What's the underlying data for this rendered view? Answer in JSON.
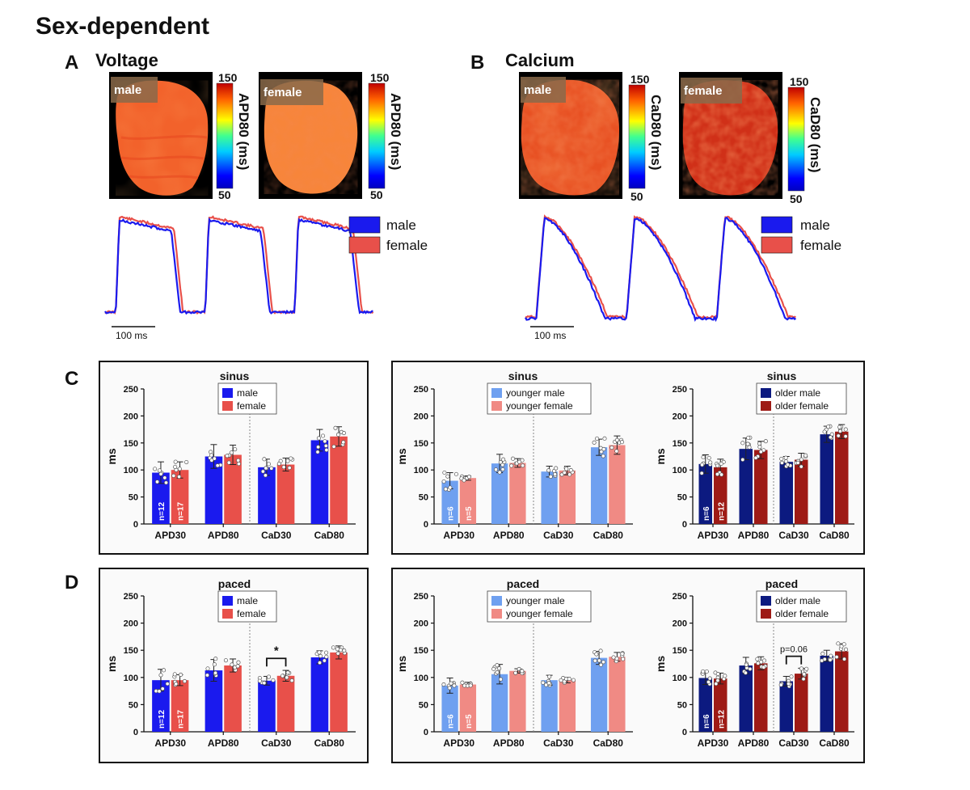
{
  "figure_title": "Sex-dependent",
  "panel_a": {
    "label": "A",
    "title": "Voltage"
  },
  "panel_b": {
    "label": "B",
    "title": "Calcium"
  },
  "panel_c": {
    "label": "C"
  },
  "panel_d": {
    "label": "D"
  },
  "maps": {
    "voltage_male": {
      "label": "male",
      "colorbar_max": "150",
      "colorbar_min": "50",
      "colorbar_title": "APD80 (ms)"
    },
    "voltage_female": {
      "label": "female",
      "colorbar_max": "150",
      "colorbar_min": "50",
      "colorbar_title": "APD80 (ms)"
    },
    "calcium_male": {
      "label": "male",
      "colorbar_max": "150",
      "colorbar_min": "50",
      "colorbar_title": "CaD80 (ms)"
    },
    "calcium_female": {
      "label": "female",
      "colorbar_max": "150",
      "colorbar_min": "50",
      "colorbar_title": "CaD80 (ms)"
    }
  },
  "traces": {
    "legend_male": "male",
    "legend_female": "female",
    "scale_bar": "100 ms"
  },
  "colors": {
    "male": "#1a1aee",
    "female": "#e8504a",
    "younger_male": "#6fa0f0",
    "younger_female": "#f08a84",
    "older_male": "#0c1a80",
    "older_female": "#9e1b16"
  },
  "chart_data": [
    {
      "id": "c1",
      "type": "bar",
      "title": "sinus",
      "ylabel": "ms",
      "ylim": [
        0,
        250
      ],
      "yticks": [
        "0",
        "50",
        "100",
        "150",
        "200",
        "250"
      ],
      "categories": [
        "APD30",
        "APD80",
        "CaD30",
        "CaD80"
      ],
      "series": [
        {
          "name": "male",
          "values": [
            95,
            125,
            105,
            155
          ]
        },
        {
          "name": "female",
          "values": [
            100,
            128,
            110,
            162
          ]
        }
      ],
      "errors": [
        [
          20,
          22,
          15,
          20
        ],
        [
          15,
          18,
          12,
          18
        ]
      ],
      "n_labels": [
        "n=12",
        "n=17"
      ],
      "annotation": ""
    },
    {
      "id": "c2",
      "type": "bar",
      "title": "sinus",
      "ylabel": "ms",
      "ylim": [
        0,
        250
      ],
      "yticks": [
        "0",
        "50",
        "100",
        "150",
        "200",
        "250"
      ],
      "categories": [
        "APD30",
        "APD80",
        "CaD30",
        "CaD80"
      ],
      "series": [
        {
          "name": "younger male",
          "values": [
            80,
            112,
            97,
            142
          ]
        },
        {
          "name": "younger female",
          "values": [
            85,
            113,
            99,
            146
          ]
        }
      ],
      "errors": [
        [
          15,
          17,
          10,
          15
        ],
        [
          4,
          8,
          8,
          17
        ]
      ],
      "n_labels": [
        "n=6",
        "n=5"
      ],
      "annotation": ""
    },
    {
      "id": "c3",
      "type": "bar",
      "title": "sinus",
      "ylabel": "ms",
      "ylim": [
        0,
        250
      ],
      "yticks": [
        "0",
        "50",
        "100",
        "150",
        "200",
        "250"
      ],
      "categories": [
        "APD30",
        "APD80",
        "CaD30",
        "CaD80"
      ],
      "series": [
        {
          "name": "older male",
          "values": [
            111,
            139,
            115,
            166
          ]
        },
        {
          "name": "older female",
          "values": [
            105,
            137,
            119,
            171
          ]
        }
      ],
      "errors": [
        [
          17,
          20,
          10,
          15
        ],
        [
          15,
          16,
          12,
          13
        ]
      ],
      "n_labels": [
        "n=6",
        "n=12"
      ],
      "annotation": ""
    },
    {
      "id": "d1",
      "type": "bar",
      "title": "paced",
      "ylabel": "ms",
      "ylim": [
        0,
        250
      ],
      "yticks": [
        "0",
        "50",
        "100",
        "150",
        "200",
        "250"
      ],
      "categories": [
        "APD30",
        "APD80",
        "CaD30",
        "CaD80"
      ],
      "series": [
        {
          "name": "male",
          "values": [
            95,
            113,
            94,
            137
          ]
        },
        {
          "name": "female",
          "values": [
            95,
            122,
            103,
            146
          ]
        }
      ],
      "errors": [
        [
          20,
          20,
          8,
          12
        ],
        [
          10,
          12,
          10,
          12
        ]
      ],
      "n_labels": [
        "n=12",
        "n=17"
      ],
      "annotation": "*"
    },
    {
      "id": "d2",
      "type": "bar",
      "title": "paced",
      "ylabel": "ms",
      "ylim": [
        0,
        250
      ],
      "yticks": [
        "0",
        "50",
        "100",
        "150",
        "200",
        "250"
      ],
      "categories": [
        "APD30",
        "APD80",
        "CaD30",
        "CaD80"
      ],
      "series": [
        {
          "name": "younger male",
          "values": [
            85,
            106,
            95,
            136
          ]
        },
        {
          "name": "younger female",
          "values": [
            87,
            112,
            95,
            138
          ]
        }
      ],
      "errors": [
        [
          14,
          18,
          9,
          12
        ],
        [
          4,
          4,
          5,
          8
        ]
      ],
      "n_labels": [
        "n=6",
        "n=5"
      ],
      "annotation": ""
    },
    {
      "id": "d3",
      "type": "bar",
      "title": "paced",
      "ylabel": "ms",
      "ylim": [
        0,
        250
      ],
      "yticks": [
        "0",
        "50",
        "100",
        "150",
        "200",
        "250"
      ],
      "categories": [
        "APD30",
        "APD80",
        "CaD30",
        "CaD80"
      ],
      "series": [
        {
          "name": "older male",
          "values": [
            99,
            122,
            93,
            140
          ]
        },
        {
          "name": "older female",
          "values": [
            98,
            126,
            107,
            148
          ]
        }
      ],
      "errors": [
        [
          12,
          15,
          9,
          10
        ],
        [
          10,
          12,
          10,
          14
        ]
      ],
      "n_labels": [
        "n=6",
        "n=12"
      ],
      "annotation": "p=0.06"
    }
  ]
}
